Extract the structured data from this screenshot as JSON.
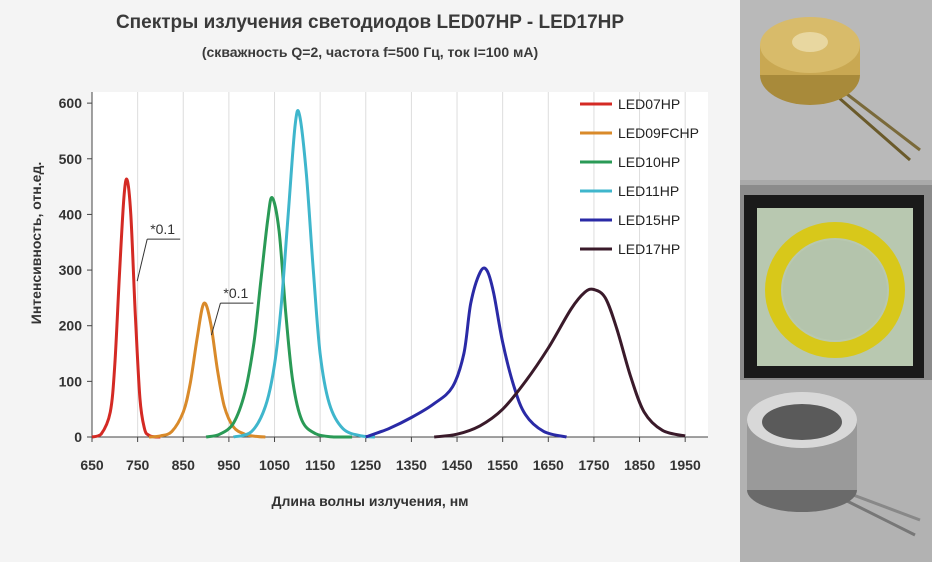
{
  "chart_data": {
    "type": "line",
    "title": "Спектры излучения светодиодов LED07HP - LED17HP",
    "subtitle": "(скважность Q=2, частота f=500 Гц, ток I=100 мА)",
    "xlabel": "Длина волны излучения, нм",
    "ylabel": "Интенсивность, отн.ед.",
    "xlim": [
      650,
      2000
    ],
    "ylim": [
      0,
      620
    ],
    "xticks": [
      650,
      750,
      850,
      950,
      1050,
      1150,
      1250,
      1350,
      1450,
      1550,
      1650,
      1750,
      1850,
      1950
    ],
    "yticks": [
      0,
      100,
      200,
      300,
      400,
      500,
      600
    ],
    "grid": true,
    "legend_position": "top-right",
    "series": [
      {
        "name": "LED07HP",
        "color": "#d42a24",
        "x": [
          650,
          670,
          690,
          700,
          710,
          720,
          727,
          735,
          745,
          755,
          765,
          775,
          790,
          800
        ],
        "values": [
          0,
          5,
          45,
          130,
          290,
          430,
          462,
          400,
          220,
          70,
          15,
          3,
          0,
          0
        ]
      },
      {
        "name": "LED09FCHP",
        "color": "#d98a2a",
        "x": [
          775,
          800,
          825,
          850,
          865,
          880,
          895,
          910,
          925,
          940,
          960,
          985,
          1010,
          1030
        ],
        "values": [
          0,
          2,
          10,
          45,
          95,
          175,
          240,
          205,
          120,
          55,
          18,
          5,
          1,
          0
        ]
      },
      {
        "name": "LED10HP",
        "color": "#2a9a56",
        "x": [
          900,
          930,
          960,
          985,
          1005,
          1020,
          1035,
          1045,
          1060,
          1075,
          1090,
          1110,
          1140,
          1180,
          1220
        ],
        "values": [
          0,
          5,
          25,
          80,
          170,
          280,
          390,
          430,
          370,
          220,
          100,
          30,
          6,
          0,
          0
        ]
      },
      {
        "name": "LED11HP",
        "color": "#3fb6cc",
        "x": [
          960,
          1000,
          1030,
          1050,
          1065,
          1080,
          1095,
          1105,
          1120,
          1135,
          1150,
          1170,
          1200,
          1240,
          1270
        ],
        "values": [
          0,
          10,
          55,
          130,
          240,
          400,
          560,
          578,
          470,
          300,
          150,
          60,
          15,
          2,
          0
        ]
      },
      {
        "name": "LED15HP",
        "color": "#2a2aa6",
        "x": [
          1250,
          1300,
          1350,
          1400,
          1440,
          1465,
          1480,
          1500,
          1515,
          1530,
          1550,
          1575,
          1600,
          1640,
          1690
        ],
        "values": [
          0,
          15,
          35,
          60,
          90,
          150,
          240,
          295,
          300,
          260,
          170,
          90,
          40,
          10,
          0
        ]
      },
      {
        "name": "LED17HP",
        "color": "#3a1a2a",
        "x": [
          1400,
          1450,
          1500,
          1550,
          1600,
          1650,
          1700,
          1730,
          1750,
          1775,
          1800,
          1830,
          1860,
          1900,
          1950
        ],
        "values": [
          0,
          5,
          20,
          50,
          100,
          160,
          230,
          260,
          265,
          250,
          195,
          110,
          45,
          12,
          2
        ]
      }
    ],
    "annotations": [
      {
        "text": "*0.1",
        "x": 760,
        "y": 370
      },
      {
        "text": "*0.1",
        "x": 938,
        "y": 255
      }
    ]
  }
}
